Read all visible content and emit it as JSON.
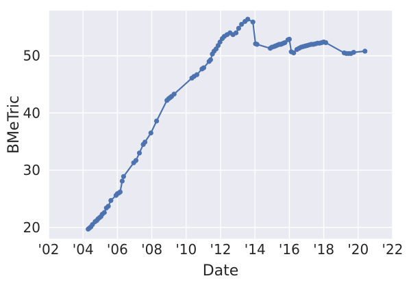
{
  "figure": {
    "background": "#ffffff",
    "axes_bg": "#eaeaf2",
    "grid_color": "#ffffff",
    "line_color": "#4c72b0",
    "text_color": "#262626"
  },
  "chart_data": {
    "type": "line",
    "title": "",
    "xlabel": "Date",
    "ylabel": "BMeTric",
    "grid": true,
    "legend": false,
    "marker": "circle",
    "xlim": [
      2002,
      2022
    ],
    "ylim": [
      18.0,
      57.9
    ],
    "x_ticks": [
      {
        "value": 2002,
        "label": "'02"
      },
      {
        "value": 2004,
        "label": "'04"
      },
      {
        "value": 2006,
        "label": "'06"
      },
      {
        "value": 2008,
        "label": "'08"
      },
      {
        "value": 2010,
        "label": "'10"
      },
      {
        "value": 2012,
        "label": "'12"
      },
      {
        "value": 2014,
        "label": "'14"
      },
      {
        "value": 2016,
        "label": "'16"
      },
      {
        "value": 2018,
        "label": "'18"
      },
      {
        "value": 2020,
        "label": "'20"
      },
      {
        "value": 2022,
        "label": "'22"
      }
    ],
    "y_ticks": [
      20,
      30,
      40,
      50
    ],
    "series": [
      {
        "name": "BMeTric",
        "x": [
          2004.3,
          2004.38,
          2004.46,
          2004.55,
          2004.7,
          2004.8,
          2004.88,
          2004.96,
          2005.04,
          2005.12,
          2005.24,
          2005.36,
          2005.47,
          2005.62,
          2005.92,
          2006.0,
          2006.08,
          2006.16,
          2006.28,
          2006.36,
          2006.95,
          2007.08,
          2007.28,
          2007.5,
          2007.6,
          2007.95,
          2008.28,
          2008.88,
          2008.98,
          2009.07,
          2009.15,
          2009.3,
          2010.33,
          2010.46,
          2010.62,
          2010.92,
          2011.02,
          2011.33,
          2011.42,
          2011.52,
          2011.62,
          2011.74,
          2011.86,
          2011.97,
          2012.1,
          2012.22,
          2012.38,
          2012.55,
          2012.72,
          2012.9,
          2013.05,
          2013.22,
          2013.42,
          2013.58,
          2013.88,
          2014.03,
          2014.12,
          2014.89,
          2014.98,
          2015.1,
          2015.18,
          2015.26,
          2015.34,
          2015.42,
          2015.5,
          2015.58,
          2015.66,
          2015.74,
          2015.92,
          2016.0,
          2016.11,
          2016.25,
          2016.44,
          2016.56,
          2016.68,
          2016.8,
          2016.92,
          2017.04,
          2017.16,
          2017.28,
          2017.4,
          2017.52,
          2017.64,
          2017.76,
          2017.88,
          2018.0,
          2018.12,
          2019.19,
          2019.32,
          2019.45,
          2019.58,
          2019.74,
          2020.4
        ],
        "y": [
          19.7,
          19.9,
          20.1,
          20.5,
          21.0,
          21.2,
          21.5,
          21.7,
          21.9,
          22.3,
          22.6,
          23.4,
          23.7,
          24.7,
          25.6,
          25.9,
          26.0,
          26.2,
          28.1,
          28.9,
          31.3,
          31.7,
          33.0,
          34.5,
          34.9,
          36.5,
          38.6,
          42.2,
          42.5,
          42.7,
          42.9,
          43.3,
          46.1,
          46.4,
          46.7,
          47.7,
          47.9,
          49.0,
          49.3,
          50.3,
          50.8,
          51.2,
          51.8,
          52.4,
          53.0,
          53.4,
          53.7,
          54.0,
          53.7,
          54.0,
          54.8,
          55.5,
          56.0,
          56.4,
          55.9,
          52.1,
          52.0,
          51.3,
          51.5,
          51.6,
          51.7,
          51.8,
          51.9,
          52.0,
          52.0,
          52.1,
          52.2,
          52.3,
          52.8,
          52.9,
          50.7,
          50.5,
          51.1,
          51.3,
          51.5,
          51.6,
          51.7,
          51.8,
          51.9,
          52.0,
          52.0,
          52.1,
          52.2,
          52.2,
          52.3,
          52.4,
          52.3,
          50.5,
          50.4,
          50.4,
          50.4,
          50.6,
          50.8
        ]
      }
    ]
  }
}
